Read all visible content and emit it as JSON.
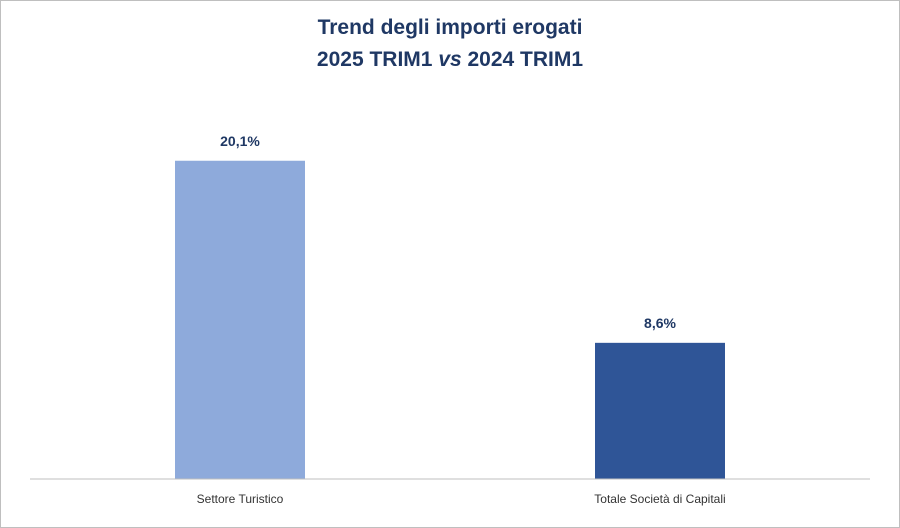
{
  "chart_data": {
    "type": "bar",
    "title_line1": "Trend degli importi erogati",
    "title_line2_a": "2025 TRIM1 ",
    "title_line2_vs": "vs",
    "title_line2_b": " 2024 TRIM1",
    "categories": [
      "Settore Turistico",
      "Totale Società di Capitali"
    ],
    "values": [
      20.1,
      8.6
    ],
    "value_labels": [
      "20,1%",
      "8,6%"
    ],
    "colors": [
      "#8eaadb",
      "#2f5597"
    ],
    "ylim": [
      0,
      24
    ],
    "grid": false,
    "legend": false
  }
}
